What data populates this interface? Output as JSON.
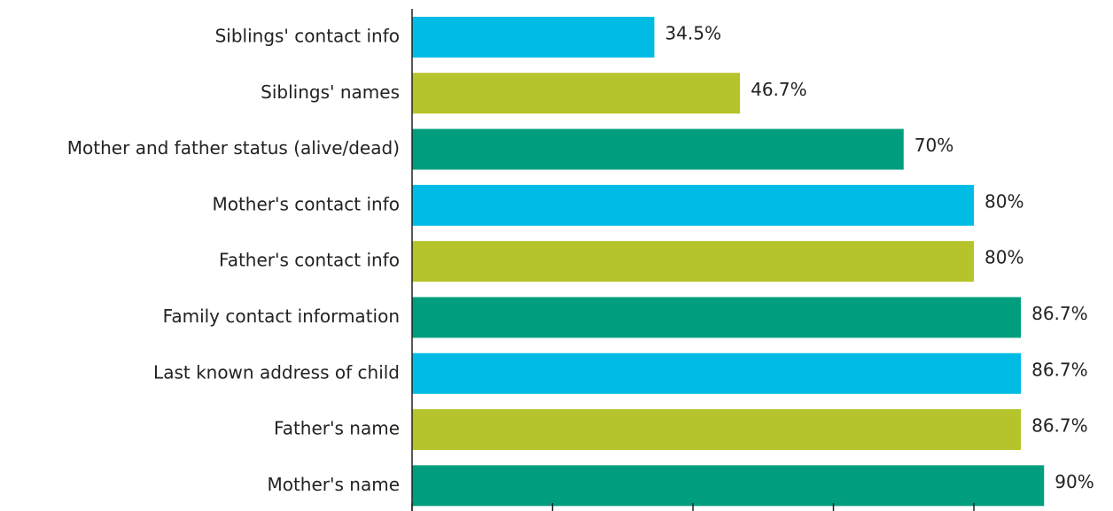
{
  "chart_data": {
    "type": "barh",
    "categories": [
      "Siblings' contact info",
      "Siblings' names",
      "Mother and father status (alive/dead)",
      "Mother's contact info",
      "Father's contact info",
      "Family contact information",
      "Last known address of child",
      "Father's name",
      "Mother's name"
    ],
    "values": [
      34.5,
      46.7,
      70,
      80,
      80,
      86.7,
      86.7,
      86.7,
      90
    ],
    "value_labels": [
      "34.5%",
      "46.7%",
      "70%",
      "80%",
      "80%",
      "86.7%",
      "86.7%",
      "86.7%",
      "90%"
    ],
    "colors": [
      "#00bce4",
      "#b5c42a",
      "#009e7e",
      "#00bce4",
      "#b5c42a",
      "#009e7e",
      "#00bce4",
      "#b5c42a",
      "#009e7e"
    ],
    "xlim": [
      0,
      100
    ],
    "xticks": [
      0,
      20,
      40,
      60,
      80
    ]
  }
}
